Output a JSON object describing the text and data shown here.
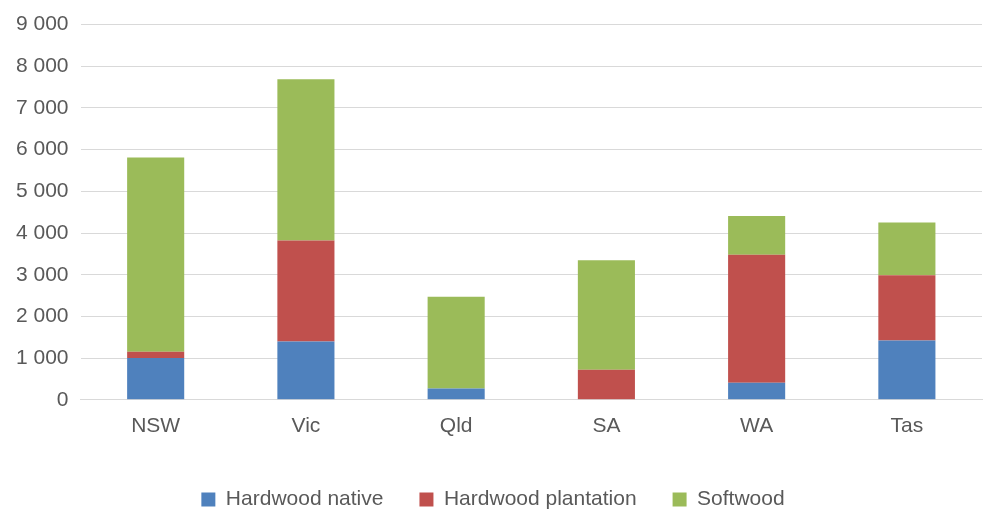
{
  "chart_data": {
    "type": "bar",
    "stacked": true,
    "categories": [
      "NSW",
      "Vic",
      "Qld",
      "SA",
      "WA",
      "Tas"
    ],
    "series": [
      {
        "name": "Hardwood native",
        "color": "#4f81bd",
        "values": [
          1000,
          1400,
          270,
          0,
          410,
          1420
        ]
      },
      {
        "name": "Hardwood plantation",
        "color": "#c0504d",
        "values": [
          150,
          2420,
          0,
          720,
          3070,
          1570
        ]
      },
      {
        "name": "Softwood",
        "color": "#9bbb59",
        "values": [
          4660,
          3870,
          2200,
          2630,
          930,
          1260
        ]
      }
    ],
    "ylim": [
      0,
      9000
    ],
    "yticks": [
      {
        "value": 0,
        "label": "0"
      },
      {
        "value": 1000,
        "label": "1 000"
      },
      {
        "value": 2000,
        "label": "2 000"
      },
      {
        "value": 3000,
        "label": "3 000"
      },
      {
        "value": 4000,
        "label": "4 000"
      },
      {
        "value": 5000,
        "label": "5 000"
      },
      {
        "value": 6000,
        "label": "6 000"
      },
      {
        "value": 7000,
        "label": "7 000"
      },
      {
        "value": 8000,
        "label": "8 000"
      },
      {
        "value": 9000,
        "label": "9 000"
      }
    ],
    "grid": "y",
    "legend": "bottom"
  }
}
